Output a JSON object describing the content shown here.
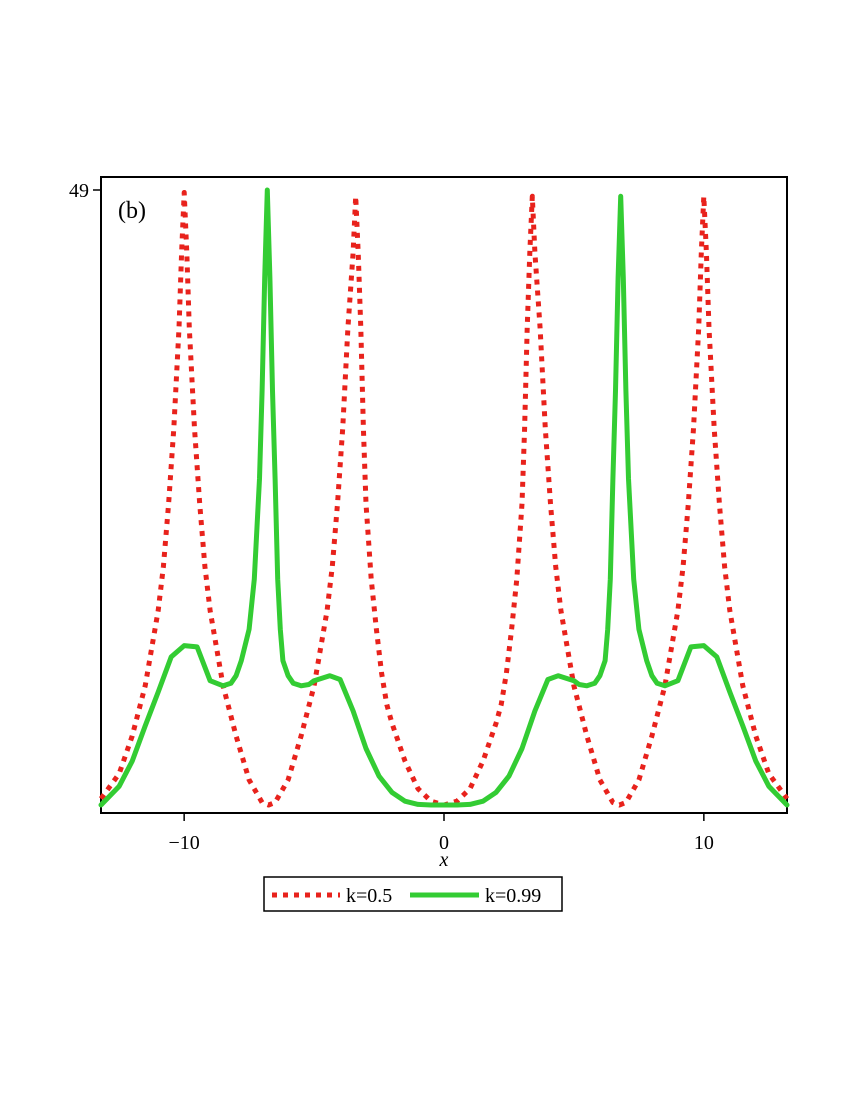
{
  "chart_data": {
    "type": "line",
    "panel_label": "(b)",
    "xlabel": "x",
    "ylabel": "",
    "xlim": [
      -13.2,
      13.2
    ],
    "ylim": [
      0,
      49
    ],
    "x_ticks": [
      {
        "value": -10,
        "label": "−10"
      },
      {
        "value": 0,
        "label": "0"
      },
      {
        "value": 10,
        "label": "10"
      }
    ],
    "y_ticks": [
      {
        "value": 49,
        "label": "49"
      }
    ],
    "legend_position": "bottom",
    "series": [
      {
        "name": "k=0.5",
        "color": "#e8221c",
        "style": "dotted",
        "x": [
          -13.2,
          -12.5,
          -12,
          -11.5,
          -11,
          -10.8,
          -10.6,
          -10.4,
          -10.2,
          -10.1,
          -10.0,
          -9.9,
          -9.8,
          -9.6,
          -9.4,
          -9.2,
          -9.0,
          -8.5,
          -8.0,
          -7.5,
          -7.0,
          -6.75,
          -6.5,
          -6.0,
          -5.5,
          -5.0,
          -4.5,
          -4.3,
          -4.1,
          -3.9,
          -3.7,
          -3.5,
          -3.4,
          -3.3,
          -3.2,
          -3.1,
          -3.0,
          -2.8,
          -2.6,
          -2.4,
          -2.2,
          -2.0,
          -1.5,
          -1.0,
          -0.5,
          0,
          0.5,
          1.0,
          1.5,
          2.0,
          2.2,
          2.4,
          2.6,
          2.8,
          3.0,
          3.1,
          3.2,
          3.3,
          3.4,
          3.5,
          3.7,
          3.9,
          4.1,
          4.3,
          4.5,
          5.0,
          5.5,
          6.0,
          6.5,
          6.75,
          7.0,
          7.5,
          8.0,
          8.5,
          9.0,
          9.2,
          9.4,
          9.6,
          9.8,
          9.9,
          10.0,
          10.1,
          10.2,
          10.4,
          10.6,
          10.8,
          11.0,
          11.5,
          12.0,
          12.5,
          13.2
        ],
        "values": [
          0.5,
          2.5,
          5.5,
          9.5,
          15.5,
          19,
          24,
          30,
          38,
          44,
          48.8,
          44,
          38,
          30,
          24,
          19,
          15.5,
          9.5,
          5.5,
          2,
          0.2,
          0,
          0.2,
          2,
          5.5,
          9.5,
          15.5,
          19,
          24,
          30,
          38,
          44,
          48.5,
          44,
          38,
          30,
          24,
          18,
          14,
          10.5,
          8,
          6.5,
          3.5,
          1.3,
          0.3,
          0,
          0.3,
          1.3,
          3.5,
          6.5,
          8,
          10.5,
          14,
          18,
          24,
          30,
          38,
          44,
          48.5,
          44,
          38,
          30,
          24,
          19,
          15.5,
          9.5,
          5.5,
          2,
          0.2,
          0,
          0.2,
          2,
          5.5,
          9.5,
          15.5,
          19,
          24,
          30,
          38,
          44,
          48.5,
          44,
          38,
          30,
          24,
          19,
          15.5,
          9.5,
          5.5,
          2.5,
          0.5
        ]
      },
      {
        "name": "k=0.99",
        "color": "#33cc33",
        "style": "solid",
        "x": [
          -13.2,
          -12.5,
          -12,
          -11.5,
          -11,
          -10.5,
          -10,
          -9.5,
          -9,
          -8.5,
          -8.2,
          -8.0,
          -7.8,
          -7.5,
          -7.3,
          -7.1,
          -7.0,
          -6.9,
          -6.8,
          -6.7,
          -6.6,
          -6.5,
          -6.4,
          -6.3,
          -6.2,
          -6.0,
          -5.8,
          -5.5,
          -5.2,
          -5.0,
          -4.7,
          -4.4,
          -4.0,
          -3.5,
          -3.0,
          -2.5,
          -2.0,
          -1.5,
          -1.0,
          -0.5,
          0,
          0.5,
          1.0,
          1.5,
          2.0,
          2.5,
          3.0,
          3.5,
          4.0,
          4.4,
          4.7,
          5.0,
          5.2,
          5.5,
          5.8,
          6.0,
          6.2,
          6.3,
          6.4,
          6.5,
          6.6,
          6.7,
          6.8,
          6.9,
          7.0,
          7.1,
          7.3,
          7.5,
          7.8,
          8.0,
          8.2,
          8.5,
          9.0,
          9.5,
          10,
          10.5,
          11,
          11.5,
          12,
          12.5,
          13.2
        ],
        "values": [
          0,
          1.5,
          3.5,
          6.3,
          9,
          11.8,
          12.7,
          12.6,
          9.9,
          9.5,
          9.7,
          10.3,
          11.5,
          14,
          18,
          26,
          33,
          42,
          49,
          42,
          33,
          26,
          18,
          14,
          11.5,
          10.3,
          9.7,
          9.5,
          9.6,
          9.9,
          10.1,
          10.3,
          10.0,
          7.5,
          4.5,
          2.3,
          1.0,
          0.3,
          0.05,
          0,
          0,
          0,
          0.05,
          0.3,
          1.0,
          2.3,
          4.5,
          7.5,
          10.0,
          10.3,
          10.1,
          9.9,
          9.6,
          9.5,
          9.7,
          10.3,
          11.5,
          14,
          18,
          26,
          33,
          42,
          48.5,
          42,
          33,
          26,
          18,
          14,
          11.5,
          10.3,
          9.7,
          9.5,
          9.9,
          12.6,
          12.7,
          11.8,
          9,
          6.3,
          3.5,
          1.5,
          0
        ]
      }
    ]
  }
}
